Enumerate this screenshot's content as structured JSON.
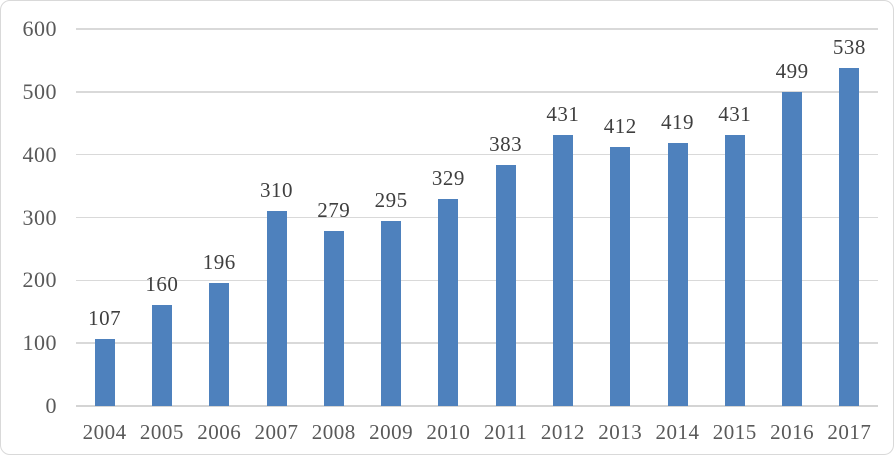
{
  "chart_data": {
    "type": "bar",
    "title": "",
    "xlabel": "",
    "ylabel": "",
    "categories": [
      "2004",
      "2005",
      "2006",
      "2007",
      "2008",
      "2009",
      "2010",
      "2011",
      "2012",
      "2013",
      "2014",
      "2015",
      "2016",
      "2017"
    ],
    "values": [
      107,
      160,
      196,
      310,
      279,
      295,
      329,
      383,
      431,
      412,
      419,
      431,
      499,
      538
    ],
    "data_labels": true,
    "ylim": [
      0,
      600
    ],
    "yticks": [
      0,
      100,
      200,
      300,
      400,
      500,
      600
    ],
    "grid": true,
    "legend": "none"
  },
  "colors": {
    "bar": "#4E81BD",
    "gridline": "#D9D9D9",
    "axis_line": "#D4D4D4",
    "tick_text": "#595959",
    "value_text": "#3F3F3F",
    "frame_border": "#D9D9D9",
    "background": "#FFFFFF"
  }
}
